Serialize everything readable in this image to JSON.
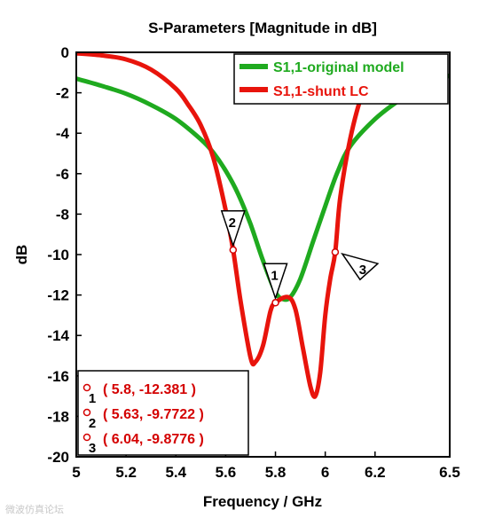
{
  "chart_data": {
    "type": "line",
    "title": "S-Parameters [Magnitude in dB]",
    "xlabel": "Frequency / GHz",
    "ylabel": "dB",
    "xlim": [
      5,
      6.5
    ],
    "ylim": [
      -20,
      0
    ],
    "x_ticks": [
      "5",
      "5.2",
      "5.4",
      "5.6",
      "5.8",
      "6",
      "6.2",
      "6.5"
    ],
    "y_ticks": [
      "0",
      "-2",
      "-4",
      "-6",
      "-8",
      "-10",
      "-12",
      "-14",
      "-16",
      "-18",
      "-20"
    ],
    "x_tick_values": [
      5,
      5.2,
      5.4,
      5.6,
      5.8,
      6,
      6.2,
      6.5
    ],
    "y_tick_values": [
      0,
      -2,
      -4,
      -6,
      -8,
      -10,
      -12,
      -14,
      -16,
      -18,
      -20
    ],
    "legend_position": "top-right",
    "grid": false,
    "series": [
      {
        "name": "S1,1-original model",
        "color": "#1faa1f",
        "x": [
          5.0,
          5.1,
          5.2,
          5.3,
          5.4,
          5.5,
          5.55,
          5.6,
          5.65,
          5.7,
          5.75,
          5.8,
          5.83,
          5.86,
          5.9,
          5.95,
          6.0,
          6.05,
          6.1,
          6.2,
          6.3,
          6.4,
          6.5
        ],
        "y": [
          -1.3,
          -1.65,
          -2.05,
          -2.6,
          -3.3,
          -4.3,
          -4.95,
          -5.85,
          -7.0,
          -8.5,
          -10.3,
          -11.85,
          -12.2,
          -12.1,
          -11.2,
          -9.4,
          -7.6,
          -5.9,
          -4.65,
          -3.3,
          -2.35,
          -1.6,
          -1.15
        ]
      },
      {
        "name": "S1,1-shunt LC",
        "color": "#e8140c",
        "x": [
          5.0,
          5.1,
          5.2,
          5.3,
          5.4,
          5.45,
          5.5,
          5.55,
          5.6,
          5.63,
          5.66,
          5.7,
          5.72,
          5.75,
          5.78,
          5.8,
          5.85,
          5.88,
          5.91,
          5.94,
          5.96,
          5.98,
          6.0,
          6.02,
          6.04,
          6.06,
          6.1,
          6.15,
          6.2,
          6.25
        ],
        "y": [
          -0.05,
          -0.15,
          -0.35,
          -0.85,
          -1.8,
          -2.6,
          -3.6,
          -5.2,
          -7.8,
          -9.77,
          -12.3,
          -15.1,
          -15.3,
          -14.5,
          -12.8,
          -12.38,
          -12.1,
          -12.7,
          -14.6,
          -16.5,
          -17.0,
          -15.8,
          -13.0,
          -11.2,
          -9.88,
          -7.2,
          -4.3,
          -2.0,
          -0.8,
          -0.2
        ]
      }
    ],
    "markers": [
      {
        "id": "1",
        "series": "S1,1-shunt LC",
        "x": 5.8,
        "y": -12.381,
        "flag_side": "above"
      },
      {
        "id": "2",
        "series": "S1,1-shunt LC",
        "x": 5.63,
        "y": -9.7722,
        "flag_side": "above"
      },
      {
        "id": "3",
        "series": "S1,1-shunt LC",
        "x": 6.04,
        "y": -9.8776,
        "flag_side": "right"
      }
    ],
    "readouts": [
      {
        "id": "1",
        "text": "( 5.8, -12.381 )"
      },
      {
        "id": "2",
        "text": "( 5.63, -9.7722 )"
      },
      {
        "id": "3",
        "text": "( 6.04, -9.8776 )"
      }
    ]
  },
  "watermark": "微波仿真论坛"
}
